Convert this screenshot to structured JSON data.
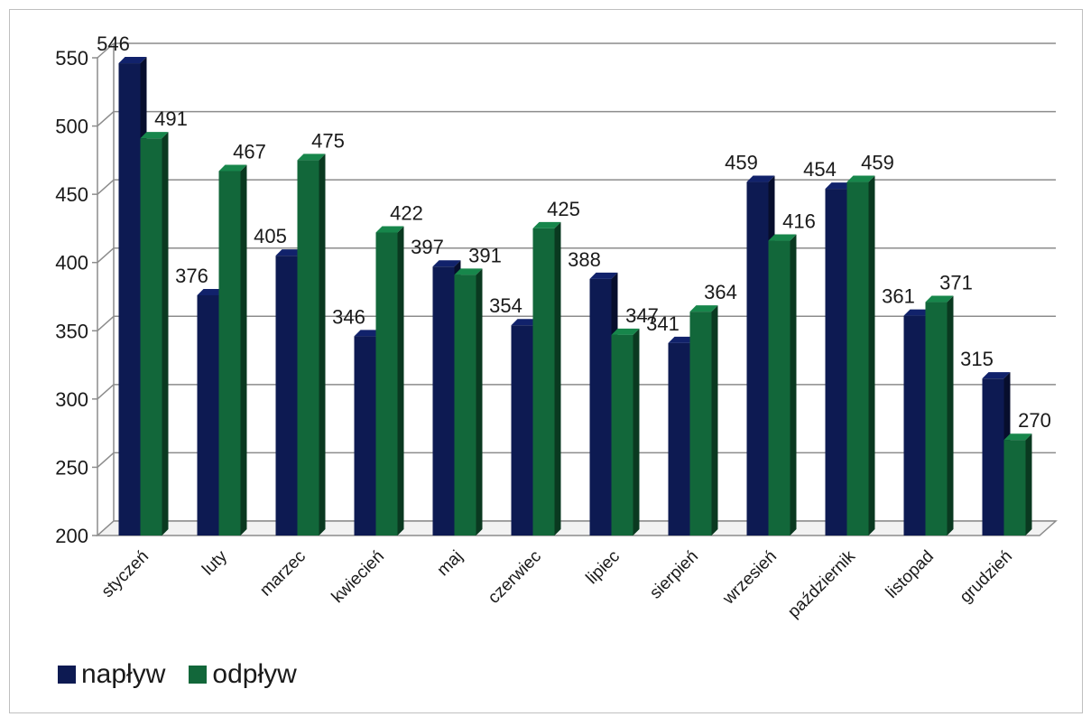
{
  "chart_data": {
    "type": "bar",
    "style": "3d-clustered-column",
    "categories": [
      "styczeń",
      "luty",
      "marzec",
      "kwiecień",
      "maj",
      "czerwiec",
      "lipiec",
      "sierpień",
      "wrzesień",
      "październik",
      "listopad",
      "grudzień"
    ],
    "series": [
      {
        "name": "napływ",
        "color": "#0d1a52",
        "values": [
          546,
          376,
          405,
          346,
          397,
          354,
          388,
          341,
          459,
          454,
          361,
          315
        ]
      },
      {
        "name": "odpływ",
        "color": "#12673a",
        "values": [
          491,
          467,
          475,
          422,
          391,
          425,
          347,
          364,
          416,
          459,
          371,
          270
        ]
      }
    ],
    "ylim": [
      200,
      550
    ],
    "yticks": [
      200,
      250,
      300,
      350,
      400,
      450,
      500,
      550
    ],
    "grid": true,
    "legend_position": "bottom-left",
    "title": "",
    "xlabel": "",
    "ylabel": ""
  }
}
